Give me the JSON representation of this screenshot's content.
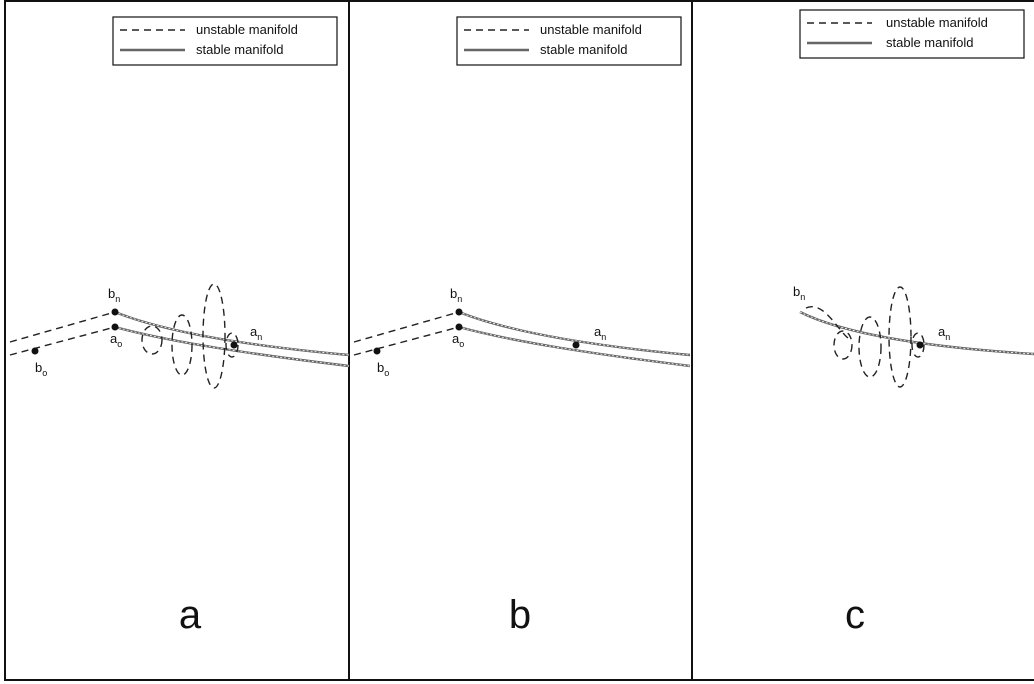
{
  "panels": [
    {
      "legend": {
        "unstable": "unstable manifold",
        "stable": "stable manifold"
      },
      "points": [
        {
          "base": "b",
          "sub": "n"
        },
        {
          "base": "a",
          "sub": "o"
        },
        {
          "base": "b",
          "sub": "o"
        },
        {
          "base": "a",
          "sub": "n"
        }
      ],
      "letter": "a"
    },
    {
      "legend": {
        "unstable": "unstable manifold",
        "stable": "stable manifold"
      },
      "points": [
        {
          "base": "b",
          "sub": "n"
        },
        {
          "base": "a",
          "sub": "o"
        },
        {
          "base": "b",
          "sub": "o"
        },
        {
          "base": "a",
          "sub": "n"
        }
      ],
      "letter": "b"
    },
    {
      "legend": {
        "unstable": "unstable manifold",
        "stable": "stable manifold"
      },
      "points": [
        {
          "base": "b",
          "sub": "n"
        },
        {
          "base": "a",
          "sub": "n"
        }
      ],
      "letter": "c"
    }
  ]
}
